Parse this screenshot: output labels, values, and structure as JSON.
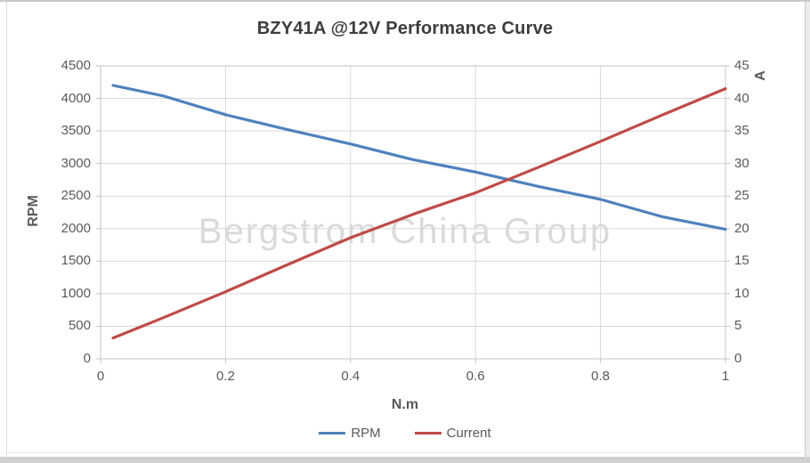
{
  "title": "BZY41A @12V Performance Curve",
  "watermark": "Bergstrom China Group",
  "axes": {
    "x": {
      "label": "N.m",
      "min": 0,
      "max": 1,
      "ticks": [
        0,
        0.2,
        0.4,
        0.6,
        0.8,
        1
      ],
      "tick_labels": [
        "0",
        "0.2",
        "0.4",
        "0.6",
        "0.8",
        "1"
      ]
    },
    "y_left": {
      "label": "RPM",
      "min": 0,
      "max": 4500,
      "ticks": [
        0,
        500,
        1000,
        1500,
        2000,
        2500,
        3000,
        3500,
        4000,
        4500
      ],
      "tick_labels": [
        "0",
        "500",
        "1000",
        "1500",
        "2000",
        "2500",
        "3000",
        "3500",
        "4000",
        "4500"
      ]
    },
    "y_right": {
      "label": "A",
      "min": 0,
      "max": 45,
      "ticks": [
        0,
        5,
        10,
        15,
        20,
        25,
        30,
        35,
        40,
        45
      ],
      "tick_labels": [
        "0",
        "5",
        "10",
        "15",
        "20",
        "25",
        "30",
        "35",
        "40",
        "45"
      ]
    }
  },
  "colors": {
    "rpm_line": "#4f81bd",
    "current_line": "#be4b48",
    "text": "#595959",
    "title_text": "#3d3d3d",
    "gridline": "#d9d9d9",
    "axis_line": "#c3c3c3",
    "watermark_text": "#dadada"
  },
  "legend": [
    {
      "label": "RPM",
      "color": "#4f81bd"
    },
    {
      "label": "Current",
      "color": "#be4b48"
    }
  ],
  "chart_data": {
    "type": "line",
    "title": "BZY41A @12V Performance Curve",
    "xlabel": "N.m",
    "ylabel_left": "RPM",
    "ylabel_right": "A",
    "xlim": [
      0,
      1
    ],
    "ylim_left": [
      0,
      4500
    ],
    "ylim_right": [
      0,
      45
    ],
    "grid": true,
    "legend_position": "bottom",
    "x": [
      0.02,
      0.1,
      0.2,
      0.3,
      0.4,
      0.5,
      0.6,
      0.7,
      0.8,
      0.9,
      1.0
    ],
    "series": [
      {
        "name": "RPM",
        "axis": "left",
        "color": "#4f81bd",
        "values": [
          4200,
          4040,
          3750,
          3520,
          3300,
          3060,
          2870,
          2650,
          2450,
          2180,
          1990
        ]
      },
      {
        "name": "Current",
        "axis": "right",
        "color": "#be4b48",
        "values": [
          3.2,
          6.3,
          10.3,
          14.5,
          18.6,
          22.2,
          25.5,
          29.4,
          33.4,
          37.5,
          41.5
        ]
      }
    ]
  }
}
